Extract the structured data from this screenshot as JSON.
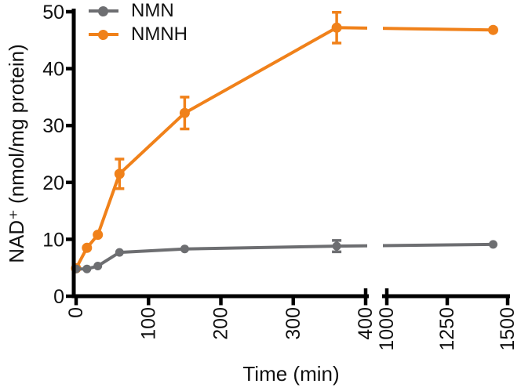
{
  "figure": {
    "background": "#FFFFFF",
    "text_color": "#111111",
    "axis_color": "#000000"
  },
  "chart_data": {
    "type": "line",
    "title": "",
    "xlabel": "Time (min)",
    "ylabel": "NAD⁺ (nmol/mg protein)",
    "x_axis": {
      "break": true,
      "break_between": [
        400,
        1000
      ],
      "segments": [
        {
          "range": [
            0,
            400
          ],
          "ticks": [
            0,
            100,
            200,
            300,
            400
          ]
        },
        {
          "range": [
            1000,
            1500
          ],
          "ticks": [
            1000,
            1250,
            1500
          ]
        }
      ],
      "tick_label_rotation": -90
    },
    "y_axis": {
      "range": [
        0,
        50
      ],
      "ticks": [
        0,
        10,
        20,
        30,
        40,
        50
      ],
      "grid": false
    },
    "legend": {
      "position": "top-left-inside",
      "entries": [
        "NMN",
        "NMNH"
      ]
    },
    "series": [
      {
        "name": "NMN",
        "color": "#6D6E71",
        "marker_radius": 5.5,
        "x": [
          0,
          15,
          30,
          60,
          150,
          360,
          1440
        ],
        "y": [
          4.8,
          4.8,
          5.3,
          7.7,
          8.3,
          8.8,
          9.1
        ],
        "yerr": [
          0,
          0,
          0,
          0,
          0,
          1.0,
          0
        ]
      },
      {
        "name": "NMNH",
        "color": "#F0811A",
        "marker_radius": 6.5,
        "x": [
          0,
          15,
          30,
          60,
          150,
          360,
          1440
        ],
        "y": [
          4.9,
          8.5,
          10.8,
          21.5,
          32.2,
          47.2,
          46.8
        ],
        "yerr": [
          0,
          0,
          0,
          2.6,
          2.8,
          2.7,
          0
        ]
      }
    ]
  }
}
